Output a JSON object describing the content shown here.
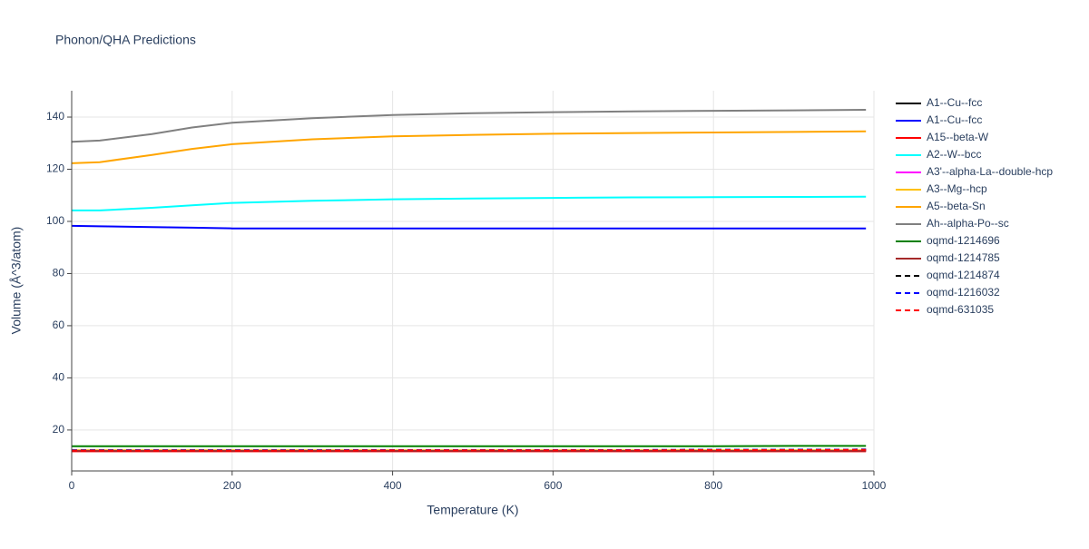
{
  "chart_data": {
    "type": "line",
    "title": "Phonon/QHA Predictions",
    "x_label": "Temperature (K)",
    "y_label": "Volume (Å^3/atom)",
    "x": [
      0,
      35,
      100,
      150,
      200,
      300,
      400,
      500,
      600,
      700,
      800,
      900,
      990
    ],
    "xlim": [
      0,
      1000
    ],
    "xticks": [
      0,
      200,
      400,
      600,
      800,
      1000
    ],
    "ylim": [
      4.3,
      150.1
    ],
    "yticks": [
      20,
      40,
      60,
      80,
      100,
      120,
      140
    ],
    "grid": true,
    "legend": "right",
    "series": [
      {
        "name": "A1--Cu--fcc",
        "color": "#000000",
        "dash": false,
        "values": [
          12.0,
          12.0,
          12.0,
          12.0,
          12.0,
          12.0,
          12.0,
          12.0,
          12.0,
          12.0,
          12.0,
          12.1,
          12.1
        ]
      },
      {
        "name": "A1--Cu--fcc",
        "color": "#0000ff",
        "dash": false,
        "values": [
          98.3,
          98.1,
          97.8,
          97.6,
          97.3,
          97.3,
          97.3,
          97.3,
          97.3,
          97.3,
          97.3,
          97.3,
          97.3
        ]
      },
      {
        "name": "A15--beta-W",
        "color": "#ff0000",
        "dash": false,
        "values": [
          11.8,
          11.8,
          11.8,
          11.8,
          11.8,
          11.8,
          11.8,
          11.8,
          11.8,
          11.8,
          11.8,
          11.8,
          11.8
        ]
      },
      {
        "name": "A2--W--bcc",
        "color": "#00ffff",
        "dash": false,
        "values": [
          104.2,
          104.2,
          105.2,
          106.2,
          107.1,
          107.9,
          108.5,
          108.8,
          109.0,
          109.2,
          109.3,
          109.4,
          109.5
        ]
      },
      {
        "name": "A3'--alpha-La--double-hcp",
        "color": "#ff00ff",
        "dash": false,
        "values": [
          12.1,
          12.1,
          12.1,
          12.1,
          12.1,
          12.1,
          12.1,
          12.1,
          12.1,
          12.1,
          12.1,
          12.1,
          12.1
        ]
      },
      {
        "name": "A3--Mg--hcp",
        "color": "#ffc000",
        "dash": false,
        "values": [
          12.2,
          12.2,
          12.2,
          12.2,
          12.2,
          12.2,
          12.2,
          12.2,
          12.2,
          12.2,
          12.2,
          12.2,
          12.2
        ]
      },
      {
        "name": "A5--beta-Sn",
        "color": "#ffa500",
        "dash": false,
        "values": [
          122.3,
          122.7,
          125.5,
          127.8,
          129.6,
          131.5,
          132.6,
          133.2,
          133.6,
          133.9,
          134.1,
          134.3,
          134.5
        ]
      },
      {
        "name": "Ah--alpha-Po--sc",
        "color": "#808080",
        "dash": false,
        "values": [
          130.5,
          131.0,
          133.5,
          136.0,
          137.8,
          139.6,
          140.8,
          141.5,
          141.9,
          142.2,
          142.4,
          142.6,
          142.8
        ]
      },
      {
        "name": "oqmd-1214696",
        "color": "#008000",
        "dash": false,
        "values": [
          13.8,
          13.8,
          13.8,
          13.8,
          13.8,
          13.8,
          13.8,
          13.8,
          13.8,
          13.8,
          13.8,
          13.9,
          13.9
        ]
      },
      {
        "name": "oqmd-1214785",
        "color": "#a52a2a",
        "dash": false,
        "values": [
          12.0,
          12.0,
          12.0,
          12.0,
          12.0,
          12.0,
          12.0,
          12.0,
          12.0,
          12.0,
          12.0,
          12.0,
          12.0
        ]
      },
      {
        "name": "oqmd-1214874",
        "color": "#000000",
        "dash": true,
        "values": [
          12.2,
          12.2,
          12.2,
          12.2,
          12.2,
          12.2,
          12.3,
          12.3,
          12.3,
          12.3,
          12.4,
          12.4,
          12.5
        ]
      },
      {
        "name": "oqmd-1216032",
        "color": "#0000ff",
        "dash": true,
        "values": [
          12.2,
          12.2,
          12.2,
          12.2,
          12.2,
          12.2,
          12.3,
          12.3,
          12.3,
          12.3,
          12.4,
          12.4,
          12.5
        ]
      },
      {
        "name": "oqmd-631035",
        "color": "#ff0000",
        "dash": true,
        "values": [
          12.1,
          12.1,
          12.1,
          12.1,
          12.1,
          12.1,
          12.2,
          12.2,
          12.2,
          12.2,
          12.3,
          12.3,
          12.4
        ]
      }
    ]
  }
}
